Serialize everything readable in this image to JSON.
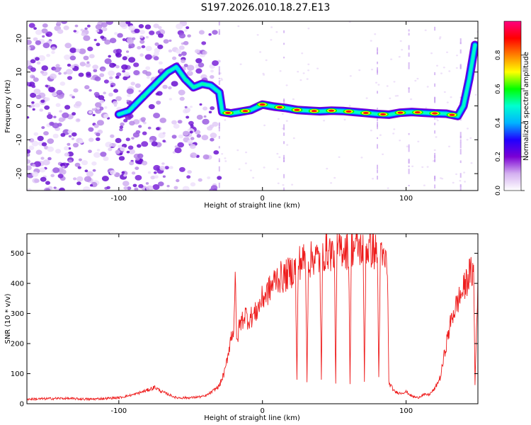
{
  "title": "S197.2026.010.18.27.E13",
  "chart_data": [
    {
      "type": "heatmap",
      "xlabel": "Height of straight line (km)",
      "ylabel": "Frequency (Hz)",
      "xlim": [
        -164,
        150
      ],
      "ylim": [
        -25,
        25
      ],
      "xticks": [
        -100,
        0,
        100
      ],
      "xtick_labels": [
        "-100",
        "0",
        "100"
      ],
      "yticks": [
        -20,
        -10,
        0,
        10,
        20
      ],
      "ytick_labels": [
        "-20",
        "-10",
        "0",
        "10",
        "20"
      ],
      "colorbar": {
        "label": "Normalized spectral amplitude",
        "range": [
          0,
          1
        ],
        "ticks": [
          0.0,
          0.2,
          0.4,
          0.6,
          0.8
        ],
        "tick_labels": [
          "0.0",
          "0.2",
          "0.4",
          "0.6",
          "0.8"
        ],
        "colors": [
          "#ffffff",
          "#d4b0f0",
          "#7b00d4",
          "#2000ff",
          "#00b4ff",
          "#00ffd0",
          "#00ff00",
          "#ffff00",
          "#ff8000",
          "#ff0000",
          "#ff0080"
        ]
      },
      "trace": {
        "name": "frequency ridge",
        "x": [
          -100,
          -93,
          -86,
          -79,
          -72,
          -66,
          -60,
          -54,
          -48,
          -42,
          -36,
          -30,
          -28,
          -22,
          -16,
          -8,
          0,
          8,
          16,
          24,
          32,
          40,
          48,
          56,
          64,
          72,
          80,
          88,
          96,
          104,
          112,
          120,
          128,
          136,
          140,
          144,
          148
        ],
        "y": [
          -2.5,
          -1.5,
          1.5,
          4.5,
          7.5,
          10,
          11.5,
          8,
          5.5,
          6.5,
          6,
          4,
          -1.8,
          -2.2,
          -1.8,
          -1.2,
          0.4,
          -0.2,
          -0.6,
          -1.2,
          -1.4,
          -1.6,
          -1.4,
          -1.5,
          -1.8,
          -2.1,
          -2.4,
          -2.6,
          -2.0,
          -1.8,
          -2.0,
          -2.2,
          -2.3,
          -3.0,
          0,
          8,
          18
        ]
      }
    },
    {
      "type": "line",
      "xlabel": "Height of straight line (km)",
      "ylabel": "SNR (10 * v/v)",
      "xlim": [
        -164,
        150
      ],
      "ylim": [
        0,
        565
      ],
      "xticks": [
        -100,
        0,
        100
      ],
      "xtick_labels": [
        "-100",
        "0",
        "100"
      ],
      "yticks": [
        0,
        100,
        200,
        300,
        400,
        500
      ],
      "ytick_labels": [
        "0",
        "100",
        "200",
        "300",
        "400",
        "500"
      ],
      "series": [
        {
          "name": "SNR",
          "color": "#ee1c1c",
          "x": [
            -164,
            -140,
            -120,
            -100,
            -90,
            -80,
            -75,
            -70,
            -60,
            -50,
            -40,
            -35,
            -30,
            -26,
            -22,
            -20,
            -19,
            -18,
            -16,
            -14,
            -12,
            -10,
            -5,
            0,
            5,
            10,
            15,
            20,
            23,
            24,
            25,
            28,
            30,
            31,
            32,
            36,
            40,
            41,
            42,
            46,
            50,
            51,
            52,
            56,
            60,
            61,
            62,
            66,
            70,
            71,
            72,
            76,
            80,
            81,
            82,
            86,
            87,
            88,
            92,
            96,
            100,
            104,
            108,
            112,
            116,
            120,
            124,
            128,
            132,
            136,
            140,
            144,
            147,
            148,
            150
          ],
          "y": [
            15,
            18,
            15,
            20,
            30,
            45,
            55,
            40,
            20,
            20,
            25,
            40,
            60,
            110,
            220,
            250,
            430,
            200,
            260,
            280,
            300,
            280,
            300,
            350,
            380,
            420,
            420,
            440,
            450,
            75,
            470,
            475,
            480,
            80,
            470,
            490,
            480,
            80,
            500,
            510,
            495,
            70,
            510,
            520,
            505,
            70,
            520,
            525,
            510,
            75,
            515,
            515,
            500,
            85,
            485,
            470,
            465,
            70,
            40,
            35,
            40,
            25,
            20,
            30,
            30,
            50,
            90,
            200,
            290,
            340,
            380,
            430,
            440,
            65,
            420
          ]
        }
      ]
    }
  ]
}
